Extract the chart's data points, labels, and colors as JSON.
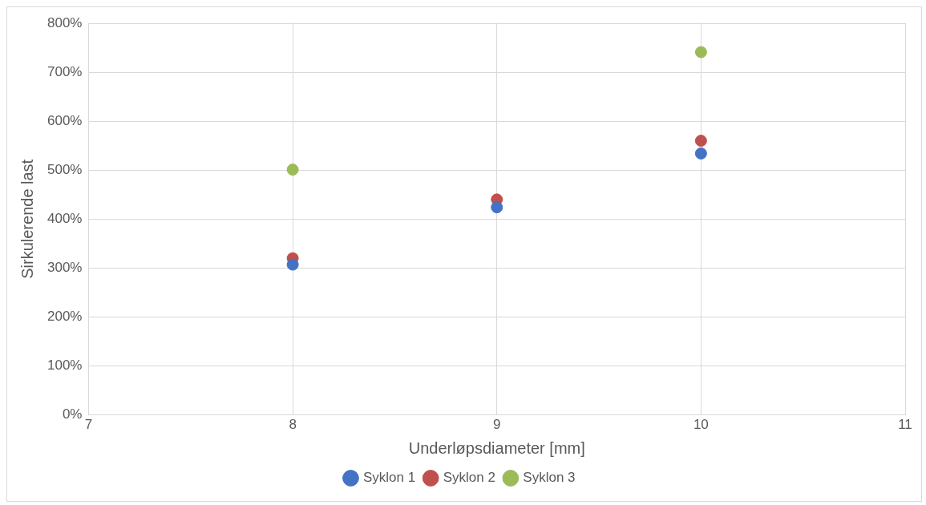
{
  "chart_data": {
    "type": "scatter",
    "xlabel": "Underløpsdiameter [mm]",
    "ylabel": "Sirkulerende last",
    "xlim": [
      7,
      11
    ],
    "xticks": [
      7,
      8,
      9,
      10,
      11
    ],
    "ylim": [
      0,
      800
    ],
    "yticks": [
      {
        "value": 0,
        "label": "0%"
      },
      {
        "value": 100,
        "label": "100%"
      },
      {
        "value": 200,
        "label": "200%"
      },
      {
        "value": 300,
        "label": "300%"
      },
      {
        "value": 400,
        "label": "400%"
      },
      {
        "value": 500,
        "label": "500%"
      },
      {
        "value": 600,
        "label": "600%"
      },
      {
        "value": 700,
        "label": "700%"
      },
      {
        "value": 800,
        "label": "800%"
      }
    ],
    "grid": true,
    "legend": "bottom",
    "marker": "circle",
    "series": [
      {
        "name": "Syklon 1",
        "color": "#4472c4",
        "x": [
          8,
          9,
          10
        ],
        "values": [
          307,
          424,
          534
        ]
      },
      {
        "name": "Syklon 2",
        "color": "#c0504d",
        "x": [
          8,
          9,
          10
        ],
        "values": [
          320,
          440,
          560
        ]
      },
      {
        "name": "Syklon 3",
        "color": "#9bbb59",
        "x": [
          8,
          10
        ],
        "values": [
          501,
          741
        ]
      }
    ]
  }
}
